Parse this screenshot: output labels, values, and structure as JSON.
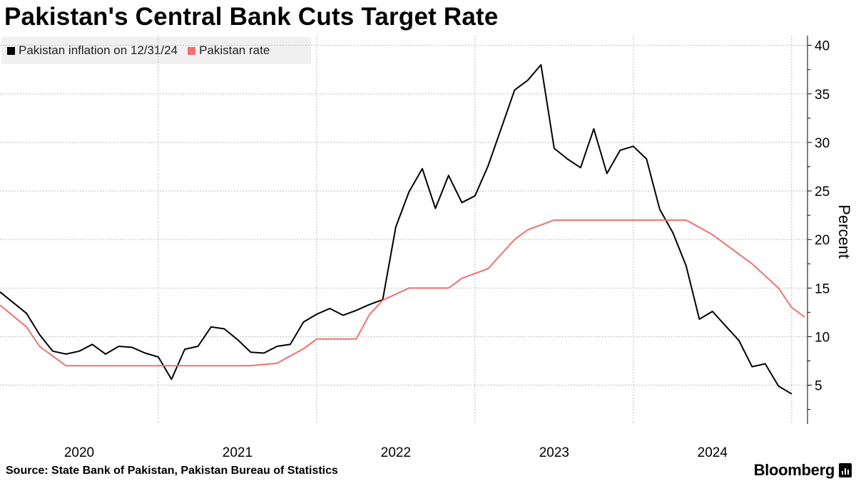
{
  "title": "Pakistan's Central Bank Cuts Target Rate",
  "source": "Source: State Bank of Pakistan, Pakistan Bureau of Statistics",
  "brand": "Bloomberg",
  "colors": {
    "inflation": "#000000",
    "rate": "#f07070",
    "grid": "#bdbdbd",
    "legend_bg": "#f0f0f0"
  },
  "chart_data": {
    "type": "line",
    "title": "Pakistan's Central Bank Cuts Target Rate",
    "xlabel": "",
    "ylabel": "Percent",
    "ylim": [
      1,
      41
    ],
    "yticks": [
      5,
      10,
      15,
      20,
      25,
      30,
      35,
      40
    ],
    "x_ticks": [
      "2020",
      "2021",
      "2022",
      "2023",
      "2024"
    ],
    "x_domain": [
      2019.5,
      2024.6
    ],
    "grid": true,
    "legend_position": "top-left",
    "series": [
      {
        "name": "Pakistan inflation on 12/31/24",
        "color": "#000000",
        "points": [
          [
            2019.5,
            14.6
          ],
          [
            2019.667,
            12.4
          ],
          [
            2019.75,
            10.2
          ],
          [
            2019.833,
            8.5
          ],
          [
            2019.917,
            8.2
          ],
          [
            2020.0,
            8.5
          ],
          [
            2020.083,
            9.2
          ],
          [
            2020.167,
            8.2
          ],
          [
            2020.25,
            9.0
          ],
          [
            2020.333,
            8.9
          ],
          [
            2020.417,
            8.3
          ],
          [
            2020.5,
            7.9
          ],
          [
            2020.583,
            5.6
          ],
          [
            2020.667,
            8.7
          ],
          [
            2020.75,
            9.0
          ],
          [
            2020.833,
            11.0
          ],
          [
            2020.917,
            10.8
          ],
          [
            2021.0,
            9.7
          ],
          [
            2021.083,
            8.4
          ],
          [
            2021.167,
            8.3
          ],
          [
            2021.25,
            9.0
          ],
          [
            2021.333,
            9.2
          ],
          [
            2021.417,
            11.5
          ],
          [
            2021.5,
            12.3
          ],
          [
            2021.583,
            12.9
          ],
          [
            2021.667,
            12.2
          ],
          [
            2021.75,
            12.7
          ],
          [
            2021.833,
            13.3
          ],
          [
            2021.917,
            13.8
          ],
          [
            2022.0,
            21.3
          ],
          [
            2022.083,
            24.9
          ],
          [
            2022.167,
            27.3
          ],
          [
            2022.25,
            23.2
          ],
          [
            2022.333,
            26.6
          ],
          [
            2022.417,
            23.8
          ],
          [
            2022.5,
            24.5
          ],
          [
            2022.583,
            27.6
          ],
          [
            2022.667,
            31.5
          ],
          [
            2022.75,
            35.4
          ],
          [
            2022.833,
            36.4
          ],
          [
            2022.917,
            38.0
          ],
          [
            2023.0,
            29.4
          ],
          [
            2023.083,
            28.3
          ],
          [
            2023.167,
            27.4
          ],
          [
            2023.25,
            31.4
          ],
          [
            2023.333,
            26.8
          ],
          [
            2023.417,
            29.2
          ],
          [
            2023.5,
            29.6
          ],
          [
            2023.583,
            28.3
          ],
          [
            2023.667,
            23.1
          ],
          [
            2023.75,
            20.7
          ],
          [
            2023.833,
            17.3
          ],
          [
            2023.917,
            11.8
          ],
          [
            2024.0,
            12.6
          ],
          [
            2024.083,
            11.1
          ],
          [
            2024.167,
            9.6
          ],
          [
            2024.25,
            6.9
          ],
          [
            2024.333,
            7.2
          ],
          [
            2024.417,
            4.9
          ],
          [
            2024.5,
            4.1
          ]
        ]
      },
      {
        "name": "Pakistan rate",
        "color": "#f07070",
        "points": [
          [
            2019.5,
            13.25
          ],
          [
            2019.667,
            11.0
          ],
          [
            2019.75,
            9.0
          ],
          [
            2019.833,
            8.0
          ],
          [
            2019.917,
            7.0
          ],
          [
            2020.5,
            7.0
          ],
          [
            2021.083,
            7.0
          ],
          [
            2021.25,
            7.25
          ],
          [
            2021.417,
            8.75
          ],
          [
            2021.5,
            9.75
          ],
          [
            2021.75,
            9.75
          ],
          [
            2021.833,
            12.25
          ],
          [
            2021.917,
            13.75
          ],
          [
            2022.083,
            15.0
          ],
          [
            2022.333,
            15.0
          ],
          [
            2022.417,
            16.0
          ],
          [
            2022.583,
            17.0
          ],
          [
            2022.75,
            20.0
          ],
          [
            2022.833,
            21.0
          ],
          [
            2023.0,
            22.0
          ],
          [
            2023.833,
            22.0
          ],
          [
            2024.0,
            20.5
          ],
          [
            2024.083,
            19.5
          ],
          [
            2024.25,
            17.5
          ],
          [
            2024.417,
            15.0
          ],
          [
            2024.5,
            13.0
          ],
          [
            2024.583,
            12.0
          ]
        ]
      }
    ]
  }
}
